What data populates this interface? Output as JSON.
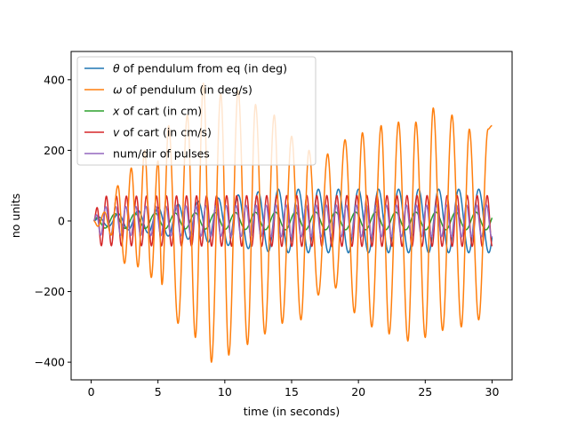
{
  "chart_data": {
    "type": "line",
    "title": "",
    "xlabel": "time (in seconds)",
    "ylabel": "no units",
    "xlim": [
      -1.5,
      31.5
    ],
    "ylim": [
      -450,
      480
    ],
    "xticks": [
      0,
      5,
      10,
      15,
      20,
      25,
      30
    ],
    "yticks": [
      -400,
      -200,
      0,
      200,
      400
    ],
    "xtick_labels": [
      "0",
      "5",
      "10",
      "15",
      "20",
      "25",
      "30"
    ],
    "ytick_labels": [
      "−400",
      "−200",
      "0",
      "200",
      "400"
    ],
    "grid": false,
    "legend_position": "top-left",
    "series": [
      {
        "name": "θ of pendulum from eq (in deg)",
        "legend_prefix": "θ",
        "legend_suffix": " of pendulum from eq (in deg)",
        "color": "#1f77b4",
        "generator": {
          "kind": "sine",
          "amp_start": 10,
          "amp_end": 90,
          "period": 1.5,
          "phase": 0.3
        }
      },
      {
        "name": "ω of pendulum (in deg/s)",
        "legend_prefix": "ω",
        "legend_suffix": " of pendulum (in deg/s)",
        "color": "#ff7f0e",
        "peaks": [
          [
            0.2,
            0
          ],
          [
            0.5,
            -15
          ],
          [
            1.0,
            25
          ],
          [
            1.5,
            -40
          ],
          [
            2.0,
            100
          ],
          [
            2.5,
            -120
          ],
          [
            3.0,
            150
          ],
          [
            3.5,
            -130
          ],
          [
            4.0,
            200
          ],
          [
            4.5,
            -160
          ],
          [
            5.0,
            170
          ],
          [
            5.3,
            -180
          ],
          [
            5.8,
            270
          ],
          [
            6.5,
            -290
          ],
          [
            7.2,
            300
          ],
          [
            7.8,
            -330
          ],
          [
            8.4,
            390
          ],
          [
            9.0,
            -400
          ],
          [
            9.7,
            360
          ],
          [
            10.3,
            -380
          ],
          [
            11.0,
            370
          ],
          [
            11.7,
            -350
          ],
          [
            12.3,
            330
          ],
          [
            13.0,
            -320
          ],
          [
            13.7,
            300
          ],
          [
            14.3,
            -290
          ],
          [
            15.0,
            240
          ],
          [
            15.7,
            -280
          ],
          [
            16.3,
            200
          ],
          [
            17.0,
            -210
          ],
          [
            17.7,
            190
          ],
          [
            18.3,
            -190
          ],
          [
            19.0,
            230
          ],
          [
            19.7,
            -260
          ],
          [
            20.3,
            250
          ],
          [
            21.0,
            -300
          ],
          [
            21.7,
            270
          ],
          [
            22.3,
            -320
          ],
          [
            23.0,
            280
          ],
          [
            23.7,
            -340
          ],
          [
            24.3,
            280
          ],
          [
            25.0,
            -330
          ],
          [
            25.6,
            320
          ],
          [
            26.3,
            -310
          ],
          [
            27.0,
            300
          ],
          [
            27.7,
            -300
          ],
          [
            28.3,
            260
          ],
          [
            29.0,
            -280
          ],
          [
            29.7,
            260
          ],
          [
            30.0,
            270
          ]
        ]
      },
      {
        "name": "x of cart (in cm)",
        "legend_prefix": "x",
        "legend_suffix": " of cart (in cm)",
        "color": "#2ca02c",
        "generator": {
          "kind": "sine",
          "amp_start": 20,
          "amp_end": 25,
          "period": 1.5,
          "phase": 1.2
        }
      },
      {
        "name": "v of cart  (in cm/s)",
        "legend_prefix": "v",
        "legend_suffix": " of cart  (in cm/s)",
        "color": "#d62728",
        "generator": {
          "kind": "sine",
          "amp_start": 70,
          "amp_end": 72,
          "period": 0.75,
          "phase": 0.0
        }
      },
      {
        "name": "num/dir of pulses",
        "legend_prefix": "",
        "legend_suffix": "num/dir of pulses",
        "color": "#9467bd",
        "generator": {
          "kind": "sine",
          "amp_start": 40,
          "amp_end": 45,
          "period": 0.75,
          "phase": 0.4
        }
      }
    ],
    "x_start": 0.2,
    "x_end": 30.0
  }
}
